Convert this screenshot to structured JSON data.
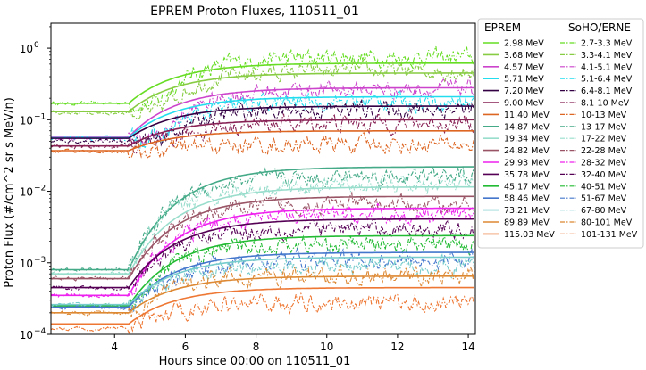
{
  "chart_data": {
    "type": "line",
    "title": "EPREM Proton Fluxes, 110511_01",
    "xlabel": "Hours since 00:00 on 110511_01",
    "ylabel": "Proton Flux (#/cm^2 sr s MeV/n)",
    "xlim": [
      2.2,
      14.2
    ],
    "ylim_log10": [
      -4,
      0.35
    ],
    "x_ticks": [
      4,
      6,
      8,
      10,
      12,
      14
    ],
    "y_ticks": [
      {
        "exp": -4,
        "label": "10",
        "sup": "−4"
      },
      {
        "exp": -3,
        "label": "10",
        "sup": "−3"
      },
      {
        "exp": -2,
        "label": "10",
        "sup": "−2"
      },
      {
        "exp": -1,
        "label": "10",
        "sup": "−1"
      },
      {
        "exp": 0,
        "label": "10",
        "sup": "0"
      }
    ],
    "legend_headers": [
      "EPREM",
      "SoHO/ERNE"
    ],
    "model_shape": {
      "rise_start_hour": 4.4,
      "rise_time_hours": 1.3
    },
    "series": [
      {
        "eprem": "2.98 MeV",
        "erne": "2.7-3.3 MeV",
        "color": "#66dd22",
        "pre": 0.17,
        "post": 0.62,
        "obs_pre": 0.17,
        "obs_post": 0.75,
        "lag": 0.8
      },
      {
        "eprem": "3.68 MeV",
        "erne": "3.3-4.1 MeV",
        "color": "#88cc44",
        "pre": 0.13,
        "post": 0.45,
        "obs_pre": 0.125,
        "obs_post": 0.48,
        "lag": 0.8
      },
      {
        "eprem": "4.57 MeV",
        "erne": "4.1-5.1 MeV",
        "color": "#cc44cc",
        "pre": 0.057,
        "post": 0.28,
        "obs_pre": 0.055,
        "obs_post": 0.27,
        "lag": 0.9
      },
      {
        "eprem": "5.71 MeV",
        "erne": "5.1-6.4 MeV",
        "color": "#22ddee",
        "pre": 0.056,
        "post": 0.21,
        "obs_pre": 0.055,
        "obs_post": 0.18,
        "lag": 0.9
      },
      {
        "eprem": "7.20 MeV",
        "erne": "6.4-8.1 MeV",
        "color": "#330044",
        "pre": 0.055,
        "post": 0.155,
        "obs_pre": 0.05,
        "obs_post": 0.14,
        "lag": 0.9
      },
      {
        "eprem": "9.00 MeV",
        "erne": "8.1-10 MeV",
        "color": "#882255",
        "pre": 0.043,
        "post": 0.1,
        "obs_pre": 0.042,
        "obs_post": 0.09,
        "lag": 0.9
      },
      {
        "eprem": "11.40 MeV",
        "erne": "10-13 MeV",
        "color": "#dd6622",
        "pre": 0.037,
        "post": 0.07,
        "obs_pre": 0.036,
        "obs_post": 0.045,
        "lag": 1.0
      },
      {
        "eprem": "14.87 MeV",
        "erne": "13-17 MeV",
        "color": "#44aa88",
        "pre": 0.0008,
        "post": 0.022,
        "obs_pre": 0.0008,
        "obs_post": 0.016,
        "lag": 0.0
      },
      {
        "eprem": "19.34 MeV",
        "erne": "17-22 MeV",
        "color": "#99ddcc",
        "pre": 0.0007,
        "post": 0.0115,
        "obs_pre": 0.0007,
        "obs_post": 0.012,
        "lag": 0.0
      },
      {
        "eprem": "24.82 MeV",
        "erne": "22-28 MeV",
        "color": "#995566",
        "pre": 0.0006,
        "post": 0.0085,
        "obs_pre": 0.0006,
        "obs_post": 0.0065,
        "lag": 0.0
      },
      {
        "eprem": "29.93 MeV",
        "erne": "28-32 MeV",
        "color": "#ee22ee",
        "pre": 0.00035,
        "post": 0.0058,
        "obs_pre": 0.00035,
        "obs_post": 0.0045,
        "lag": 0.1
      },
      {
        "eprem": "35.78 MeV",
        "erne": "32-40 MeV",
        "color": "#550055",
        "pre": 0.00045,
        "post": 0.0041,
        "obs_pre": 0.00045,
        "obs_post": 0.003,
        "lag": 0.1
      },
      {
        "eprem": "45.17 MeV",
        "erne": "40-51 MeV",
        "color": "#22bb33",
        "pre": 0.00025,
        "post": 0.0024,
        "obs_pre": 0.00025,
        "obs_post": 0.0018,
        "lag": 0.1
      },
      {
        "eprem": "58.46 MeV",
        "erne": "51-67 MeV",
        "color": "#4477cc",
        "pre": 0.00024,
        "post": 0.0014,
        "obs_pre": 0.00024,
        "obs_post": 0.0011,
        "lag": 0.2
      },
      {
        "eprem": "73.21 MeV",
        "erne": "67-80 MeV",
        "color": "#77cccc",
        "pre": 0.00026,
        "post": 0.0012,
        "obs_pre": 0.00026,
        "obs_post": 0.0009,
        "lag": 0.2
      },
      {
        "eprem": "89.89 MeV",
        "erne": "80-101 MeV",
        "color": "#dd8833",
        "pre": 0.0002,
        "post": 0.00065,
        "obs_pre": 0.0002,
        "obs_post": 0.00065,
        "lag": 0.2
      },
      {
        "eprem": "115.03 MeV",
        "erne": "101-131 MeV",
        "color": "#ee7733",
        "pre": 0.00014,
        "post": 0.00045,
        "obs_pre": 0.00012,
        "obs_post": 0.00028,
        "lag": 0.3
      }
    ]
  }
}
